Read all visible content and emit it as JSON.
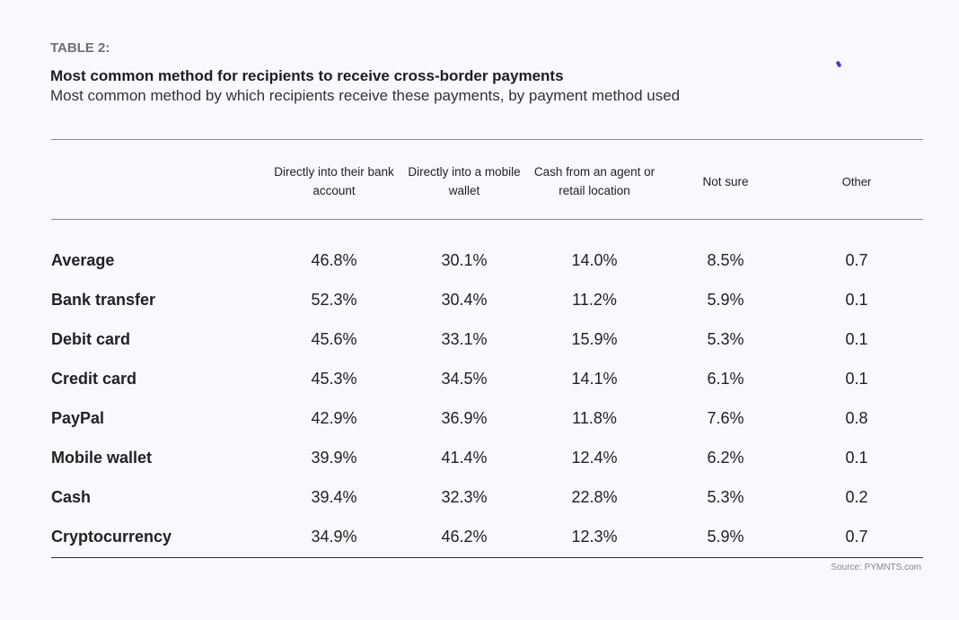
{
  "kicker": "TABLE 2:",
  "title": "Most common method for recipients to receive cross-border payments",
  "subtitle": "Most common method by which recipients receive these payments, by payment method used",
  "columns": [
    "Directly into their bank account",
    "Directly into a mobile wallet",
    "Cash from an agent or retail location",
    "Not sure",
    "Other"
  ],
  "rows": [
    {
      "label": "Average",
      "values": [
        "46.8%",
        "30.1%",
        "14.0%",
        "8.5%",
        "0.7"
      ]
    },
    {
      "label": "Bank transfer",
      "values": [
        "52.3%",
        "30.4%",
        "11.2%",
        "5.9%",
        "0.1"
      ]
    },
    {
      "label": "Debit card",
      "values": [
        "45.6%",
        "33.1%",
        "15.9%",
        "5.3%",
        "0.1"
      ]
    },
    {
      "label": "Credit card",
      "values": [
        "45.3%",
        "34.5%",
        "14.1%",
        "6.1%",
        "0.1"
      ]
    },
    {
      "label": "PayPal",
      "values": [
        "42.9%",
        "36.9%",
        "11.8%",
        "7.6%",
        "0.8"
      ]
    },
    {
      "label": "Mobile wallet",
      "values": [
        "39.9%",
        "41.4%",
        "12.4%",
        "6.2%",
        "0.1"
      ]
    },
    {
      "label": "Cash",
      "values": [
        "39.4%",
        "32.3%",
        "22.8%",
        "5.3%",
        "0.2"
      ]
    },
    {
      "label": "Cryptocurrency",
      "values": [
        "34.9%",
        "46.2%",
        "12.3%",
        "5.9%",
        "0.7"
      ]
    }
  ],
  "source": "Source: PYMNTS.com",
  "colors": {
    "accent": "#4433dd",
    "background": "#f8f8fd"
  }
}
